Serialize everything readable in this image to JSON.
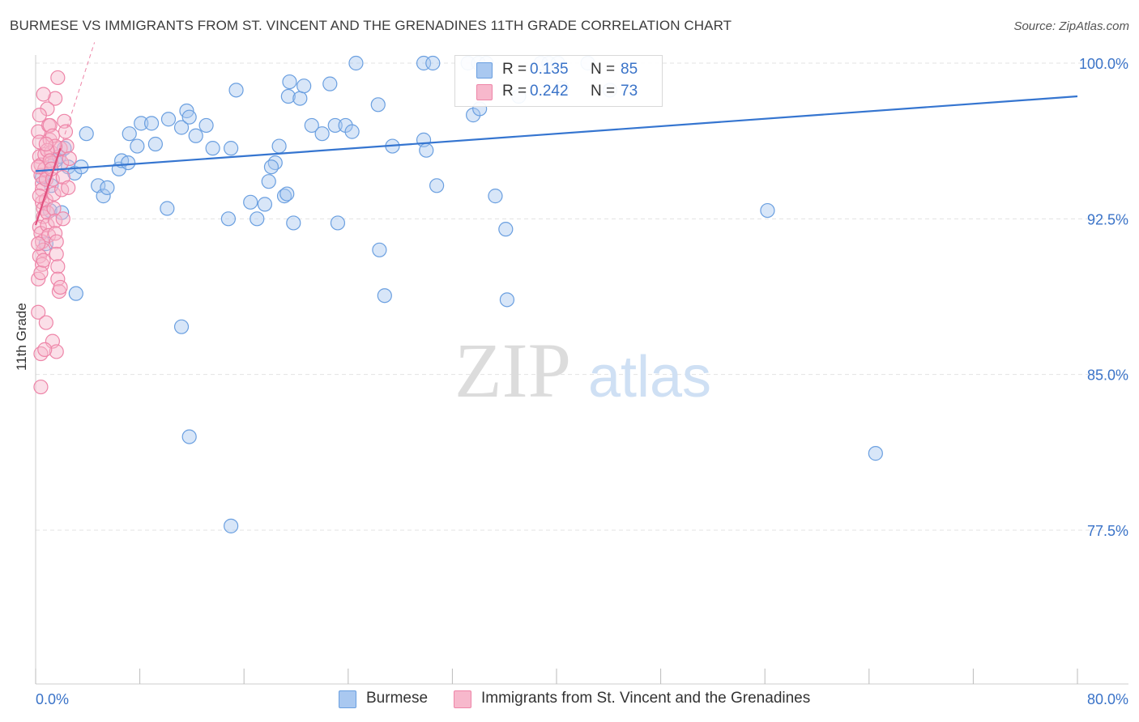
{
  "title": "BURMESE VS IMMIGRANTS FROM ST. VINCENT AND THE GRENADINES 11TH GRADE CORRELATION CHART",
  "source": "Source: ZipAtlas.com",
  "watermark": {
    "zip": "ZIP",
    "atlas": "atlas"
  },
  "legend": {
    "series1": {
      "r_key": "R =",
      "r_value": "0.135",
      "n_key": "N =",
      "n_value": "85"
    },
    "series2": {
      "r_key": "R =",
      "r_value": "0.242",
      "n_key": "N =",
      "n_value": "73"
    }
  },
  "colors": {
    "blue_fill": "#a9c8f0",
    "blue_stroke": "#6a9fe0",
    "blue_line": "#3575d0",
    "pink_fill": "#f7b8cc",
    "pink_stroke": "#ee85a8",
    "pink_line": "#e0507e",
    "axis_label": "#3a73c8",
    "grid": "#e3e3e3"
  },
  "chart_data": {
    "type": "scatter",
    "title": "BURMESE VS IMMIGRANTS FROM ST. VINCENT AND THE GRENADINES 11TH GRADE CORRELATION CHART",
    "xlabel": "",
    "ylabel": "11th Grade",
    "xlim": [
      0,
      80
    ],
    "ylim": [
      70.5,
      101
    ],
    "x_tick_labels": [
      "0.0%",
      "80.0%"
    ],
    "y_ticks": [
      77.5,
      85.0,
      92.5,
      100.0
    ],
    "y_tick_labels": [
      "77.5%",
      "85.0%",
      "92.5%",
      "100.0%"
    ],
    "legend_position": "top-center",
    "series": [
      {
        "name": "Burmese",
        "r": 0.135,
        "n": 85,
        "trend": {
          "x": [
            0,
            80
          ],
          "y": [
            94.8,
            98.4
          ]
        },
        "points": [
          [
            0.5,
            94.5
          ],
          [
            0.8,
            91.3
          ],
          [
            1.1,
            92.9
          ],
          [
            1.2,
            94.1
          ],
          [
            1.5,
            95.3
          ],
          [
            1.8,
            95.5
          ],
          [
            2.2,
            95.9
          ],
          [
            2.5,
            95.0
          ],
          [
            3.0,
            94.7
          ],
          [
            3.5,
            95.0
          ],
          [
            3.9,
            96.6
          ],
          [
            4.8,
            94.1
          ],
          [
            5.2,
            93.6
          ],
          [
            5.5,
            94.0
          ],
          [
            6.4,
            94.9
          ],
          [
            6.6,
            95.3
          ],
          [
            7.8,
            96.0
          ],
          [
            7.2,
            96.6
          ],
          [
            8.1,
            97.1
          ],
          [
            8.9,
            97.1
          ],
          [
            7.1,
            95.2
          ],
          [
            9.2,
            96.1
          ],
          [
            10.2,
            97.3
          ],
          [
            11.2,
            96.9
          ],
          [
            11.6,
            97.7
          ],
          [
            11.8,
            97.4
          ],
          [
            12.3,
            96.5
          ],
          [
            13.1,
            97.0
          ],
          [
            13.6,
            95.9
          ],
          [
            15.0,
            95.9
          ],
          [
            15.4,
            98.7
          ],
          [
            16.5,
            93.3
          ],
          [
            17.0,
            92.5
          ],
          [
            17.6,
            93.2
          ],
          [
            17.9,
            94.3
          ],
          [
            18.4,
            95.2
          ],
          [
            18.7,
            96.0
          ],
          [
            19.1,
            93.6
          ],
          [
            19.4,
            98.4
          ],
          [
            19.5,
            99.1
          ],
          [
            20.3,
            98.3
          ],
          [
            20.6,
            98.9
          ],
          [
            21.2,
            97.0
          ],
          [
            22.0,
            96.6
          ],
          [
            22.6,
            99.0
          ],
          [
            23.0,
            97.0
          ],
          [
            19.3,
            93.7
          ],
          [
            14.8,
            92.5
          ],
          [
            19.8,
            92.3
          ],
          [
            23.2,
            92.3
          ],
          [
            26.4,
            91.0
          ],
          [
            26.8,
            88.8
          ],
          [
            27.4,
            96.0
          ],
          [
            23.8,
            97.0
          ],
          [
            24.3,
            96.7
          ],
          [
            18.1,
            95.0
          ],
          [
            24.6,
            100.0
          ],
          [
            29.8,
            100.0
          ],
          [
            30.5,
            100.0
          ],
          [
            26.3,
            98.0
          ],
          [
            29.8,
            96.3
          ],
          [
            30.0,
            95.8
          ],
          [
            30.8,
            94.1
          ],
          [
            33.2,
            100.0
          ],
          [
            34.0,
            100.0
          ],
          [
            34.6,
            100.0
          ],
          [
            33.6,
            97.5
          ],
          [
            34.1,
            97.8
          ],
          [
            35.3,
            93.6
          ],
          [
            36.1,
            92.0
          ],
          [
            36.2,
            88.6
          ],
          [
            37.1,
            98.4
          ],
          [
            38.8,
            100.0
          ],
          [
            39.4,
            100.0
          ],
          [
            40.1,
            100.0
          ],
          [
            40.4,
            98.8
          ],
          [
            42.4,
            100.0
          ],
          [
            44.1,
            98.7
          ],
          [
            56.2,
            92.9
          ],
          [
            64.5,
            81.2
          ],
          [
            10.1,
            93.0
          ],
          [
            2.0,
            92.8
          ],
          [
            3.1,
            88.9
          ],
          [
            11.2,
            87.3
          ],
          [
            11.8,
            82.0
          ],
          [
            15.0,
            77.7
          ]
        ]
      },
      {
        "name": "Immigrants from St. Vincent and the Grenadines",
        "r": 0.242,
        "n": 73,
        "trend": {
          "x": [
            0,
            1.9
          ],
          "y": [
            92.2,
            95.9
          ]
        },
        "points": [
          [
            0.2,
            96.7
          ],
          [
            0.3,
            96.2
          ],
          [
            0.3,
            95.5
          ],
          [
            0.4,
            95.1
          ],
          [
            0.4,
            94.6
          ],
          [
            0.5,
            94.2
          ],
          [
            0.5,
            93.9
          ],
          [
            0.5,
            93.3
          ],
          [
            0.6,
            93.0
          ],
          [
            0.6,
            92.6
          ],
          [
            0.3,
            92.1
          ],
          [
            0.4,
            91.8
          ],
          [
            0.5,
            91.4
          ],
          [
            0.6,
            91.0
          ],
          [
            0.3,
            90.7
          ],
          [
            0.5,
            90.3
          ],
          [
            0.7,
            95.6
          ],
          [
            0.7,
            94.9
          ],
          [
            0.8,
            94.4
          ],
          [
            0.8,
            93.4
          ],
          [
            0.9,
            92.8
          ],
          [
            0.9,
            92.2
          ],
          [
            1.0,
            91.7
          ],
          [
            1.0,
            97.0
          ],
          [
            1.1,
            96.3
          ],
          [
            1.2,
            95.7
          ],
          [
            1.2,
            95.2
          ],
          [
            1.3,
            94.4
          ],
          [
            1.4,
            93.7
          ],
          [
            1.4,
            93.0
          ],
          [
            1.5,
            92.4
          ],
          [
            1.5,
            91.8
          ],
          [
            1.6,
            91.4
          ],
          [
            1.6,
            90.8
          ],
          [
            1.7,
            90.2
          ],
          [
            1.7,
            89.6
          ],
          [
            1.8,
            89.0
          ],
          [
            1.9,
            95.9
          ],
          [
            2.0,
            95.2
          ],
          [
            2.1,
            94.5
          ],
          [
            2.0,
            93.9
          ],
          [
            2.2,
            97.2
          ],
          [
            2.3,
            96.7
          ],
          [
            2.4,
            96.0
          ],
          [
            1.5,
            98.3
          ],
          [
            1.7,
            99.3
          ],
          [
            0.6,
            98.5
          ],
          [
            0.9,
            97.8
          ],
          [
            1.1,
            97.0
          ],
          [
            1.3,
            96.5
          ],
          [
            1.5,
            96.0
          ],
          [
            0.9,
            95.8
          ],
          [
            1.1,
            95.3
          ],
          [
            1.2,
            94.9
          ],
          [
            0.2,
            89.6
          ],
          [
            0.4,
            89.9
          ],
          [
            0.6,
            90.5
          ],
          [
            0.2,
            88.0
          ],
          [
            0.8,
            87.5
          ],
          [
            1.3,
            86.6
          ],
          [
            1.6,
            86.1
          ],
          [
            0.4,
            86.0
          ],
          [
            0.4,
            84.4
          ],
          [
            0.3,
            97.5
          ],
          [
            0.8,
            96.1
          ],
          [
            0.2,
            95.0
          ],
          [
            0.3,
            93.6
          ],
          [
            0.2,
            91.3
          ],
          [
            2.1,
            92.5
          ],
          [
            2.5,
            94.0
          ],
          [
            1.9,
            89.2
          ],
          [
            0.7,
            86.2
          ],
          [
            2.6,
            95.4
          ]
        ]
      }
    ]
  },
  "axes": {
    "y_axis_title": "11th Grade",
    "x_min_label": "0.0%",
    "x_max_label": "80.0%"
  },
  "bottom_legend": {
    "item1": "Burmese",
    "item2": "Immigrants from St. Vincent and the Grenadines"
  }
}
